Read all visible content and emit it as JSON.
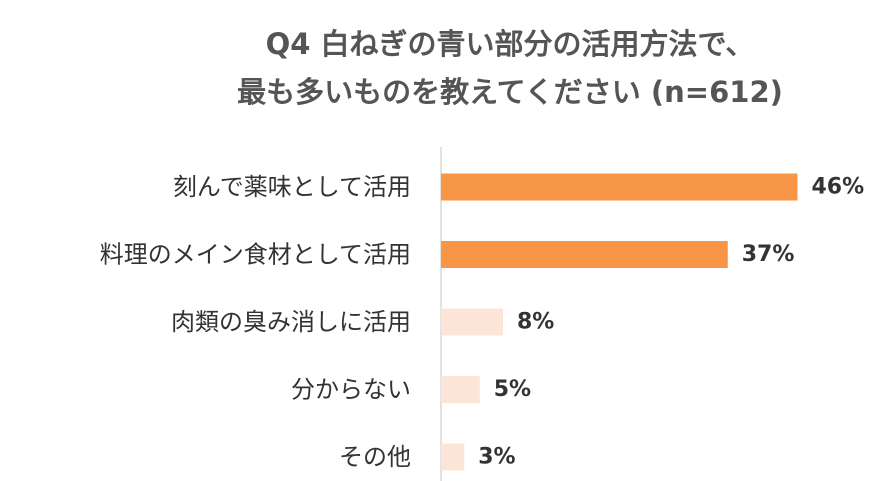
{
  "chart_data": {
    "type": "bar",
    "orientation": "horizontal",
    "title_lines": [
      "Q4 白ねぎの青い部分の活用方法で、",
      "最も多いものを教えてください (n=612)"
    ],
    "categories": [
      "刻んで薬味として活用",
      "料理のメイン食材として活用",
      "肉類の臭み消しに活用",
      "分からない",
      "その他"
    ],
    "values": [
      46,
      37,
      8,
      5,
      3
    ],
    "value_labels": [
      "46%",
      "37%",
      "8%",
      "5%",
      "3%"
    ],
    "unit": "%",
    "xlim": [
      0,
      100
    ],
    "grid": false,
    "legend": "none",
    "colors": {
      "highlight": "#F79646",
      "muted": "#FCE4D6",
      "axis": "#D9D9D9",
      "text": "#333333",
      "title": "#555555"
    },
    "highlight_count": 2
  }
}
